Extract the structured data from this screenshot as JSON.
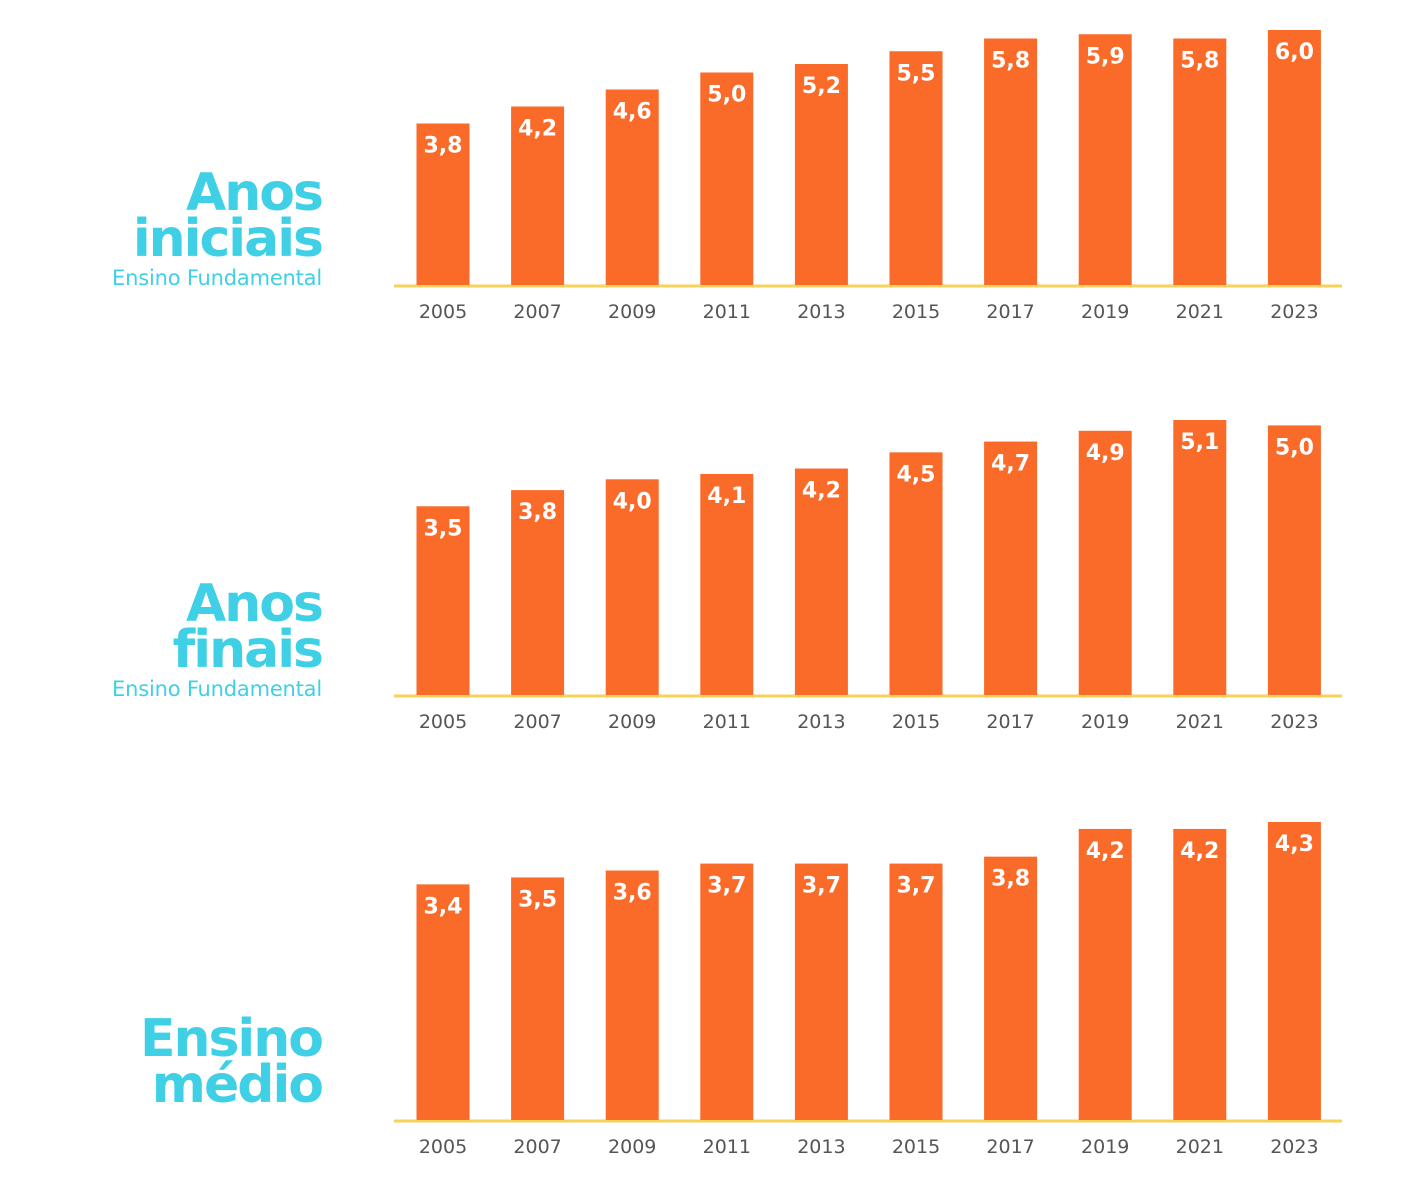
{
  "colors": {
    "bar": "#fa6a28",
    "baseline": "#f7d25a",
    "title": "#3fd0e6",
    "tick": "#555555",
    "bar_label": "#ffffff"
  },
  "panels": [
    {
      "title_line1": "Anos",
      "title_line2": "iniciais",
      "subtitle": "Ensino Fundamental"
    },
    {
      "title_line1": "Anos",
      "title_line2": "finais",
      "subtitle": "Ensino Fundamental"
    },
    {
      "title_line1": "Ensino",
      "title_line2": "médio",
      "subtitle": ""
    }
  ],
  "chart_data": [
    {
      "type": "bar",
      "categories": [
        "2005",
        "2007",
        "2009",
        "2011",
        "2013",
        "2015",
        "2017",
        "2019",
        "2021",
        "2023"
      ],
      "values": [
        3.8,
        4.2,
        4.6,
        5.0,
        5.2,
        5.5,
        5.8,
        5.9,
        5.8,
        6.0
      ],
      "value_labels": [
        "3,8",
        "4,2",
        "4,6",
        "5,0",
        "5,2",
        "5,5",
        "5,8",
        "5,9",
        "5,8",
        "6,0"
      ],
      "title": "",
      "xlabel": "",
      "ylabel": "",
      "ylim": [
        0,
        6.0
      ],
      "grid": false
    },
    {
      "type": "bar",
      "categories": [
        "2005",
        "2007",
        "2009",
        "2011",
        "2013",
        "2015",
        "2017",
        "2019",
        "2021",
        "2023"
      ],
      "values": [
        3.5,
        3.8,
        4.0,
        4.1,
        4.2,
        4.5,
        4.7,
        4.9,
        5.1,
        5.0
      ],
      "value_labels": [
        "3,5",
        "3,8",
        "4,0",
        "4,1",
        "4,2",
        "4,5",
        "4,7",
        "4,9",
        "5,1",
        "5,0"
      ],
      "title": "",
      "xlabel": "",
      "ylabel": "",
      "ylim": [
        0,
        5.1
      ],
      "grid": false
    },
    {
      "type": "bar",
      "categories": [
        "2005",
        "2007",
        "2009",
        "2011",
        "2013",
        "2015",
        "2017",
        "2019",
        "2021",
        "2023"
      ],
      "values": [
        3.4,
        3.5,
        3.6,
        3.7,
        3.7,
        3.7,
        3.8,
        4.2,
        4.2,
        4.3
      ],
      "value_labels": [
        "3,4",
        "3,5",
        "3,6",
        "3,7",
        "3,7",
        "3,7",
        "3,8",
        "4,2",
        "4,2",
        "4,3"
      ],
      "title": "",
      "xlabel": "",
      "ylabel": "",
      "ylim": [
        0,
        4.3
      ],
      "grid": false
    }
  ]
}
